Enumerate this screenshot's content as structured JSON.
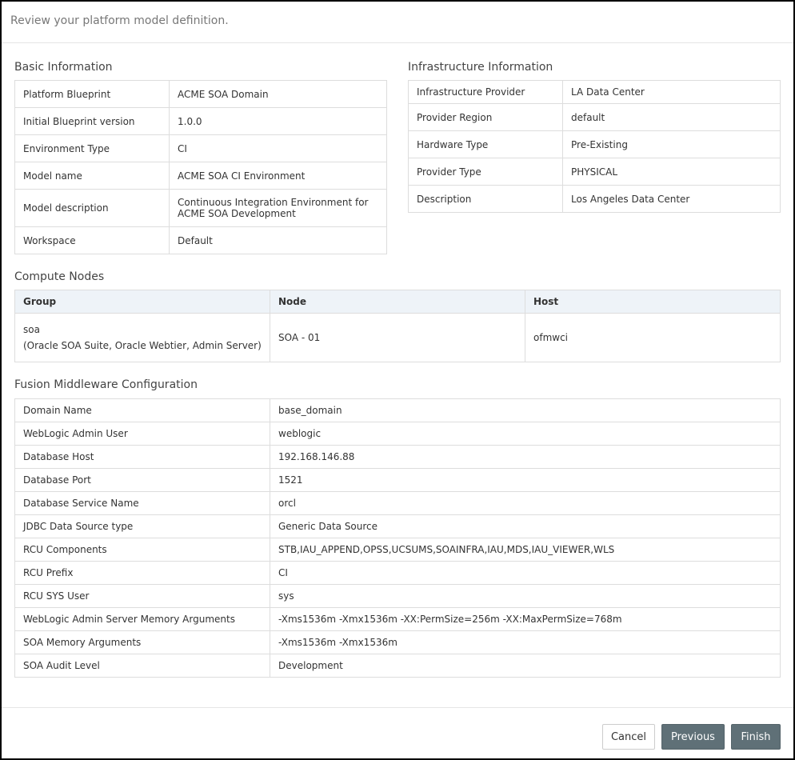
{
  "header": {
    "title": "Review your platform model definition."
  },
  "basic": {
    "title": "Basic Information",
    "rows": [
      [
        "Platform Blueprint",
        "ACME SOA Domain"
      ],
      [
        "Initial Blueprint version",
        "1.0.0"
      ],
      [
        "Environment Type",
        "CI"
      ],
      [
        "Model name",
        "ACME SOA CI Environment"
      ],
      [
        "Model description",
        "Continuous Integration Environment for ACME SOA Development"
      ],
      [
        "Workspace",
        "Default"
      ]
    ]
  },
  "infra": {
    "title": "Infrastructure Information",
    "rows": [
      [
        "Infrastructure Provider",
        "LA Data Center"
      ],
      [
        "Provider Region",
        "default"
      ],
      [
        "Hardware Type",
        "Pre-Existing"
      ],
      [
        "Provider Type",
        "PHYSICAL"
      ],
      [
        "Description",
        "Los Angeles Data Center"
      ]
    ]
  },
  "compute": {
    "title": "Compute Nodes",
    "headers": [
      "Group",
      "Node",
      "Host"
    ],
    "rows": [
      {
        "group": "soa",
        "group_detail": "(Oracle SOA Suite, Oracle Webtier, Admin Server)",
        "node": "SOA - 01",
        "host": "ofmwci"
      }
    ]
  },
  "fmw": {
    "title": "Fusion Middleware Configuration",
    "rows": [
      [
        "Domain Name",
        "base_domain"
      ],
      [
        "WebLogic Admin User",
        "weblogic"
      ],
      [
        "Database Host",
        "192.168.146.88"
      ],
      [
        "Database Port",
        "1521"
      ],
      [
        "Database Service Name",
        "orcl"
      ],
      [
        "JDBC Data Source type",
        "Generic Data Source"
      ],
      [
        "RCU Components",
        "STB,IAU_APPEND,OPSS,UCSUMS,SOAINFRA,IAU,MDS,IAU_VIEWER,WLS"
      ],
      [
        "RCU Prefix",
        "CI"
      ],
      [
        "RCU SYS User",
        "sys"
      ],
      [
        "WebLogic Admin Server Memory Arguments",
        "-Xms1536m -Xmx1536m -XX:PermSize=256m -XX:MaxPermSize=768m"
      ],
      [
        "SOA Memory Arguments",
        "-Xms1536m -Xmx1536m"
      ],
      [
        "SOA Audit Level",
        "Development"
      ]
    ]
  },
  "footer": {
    "cancel": "Cancel",
    "previous": "Previous",
    "finish": "Finish"
  }
}
